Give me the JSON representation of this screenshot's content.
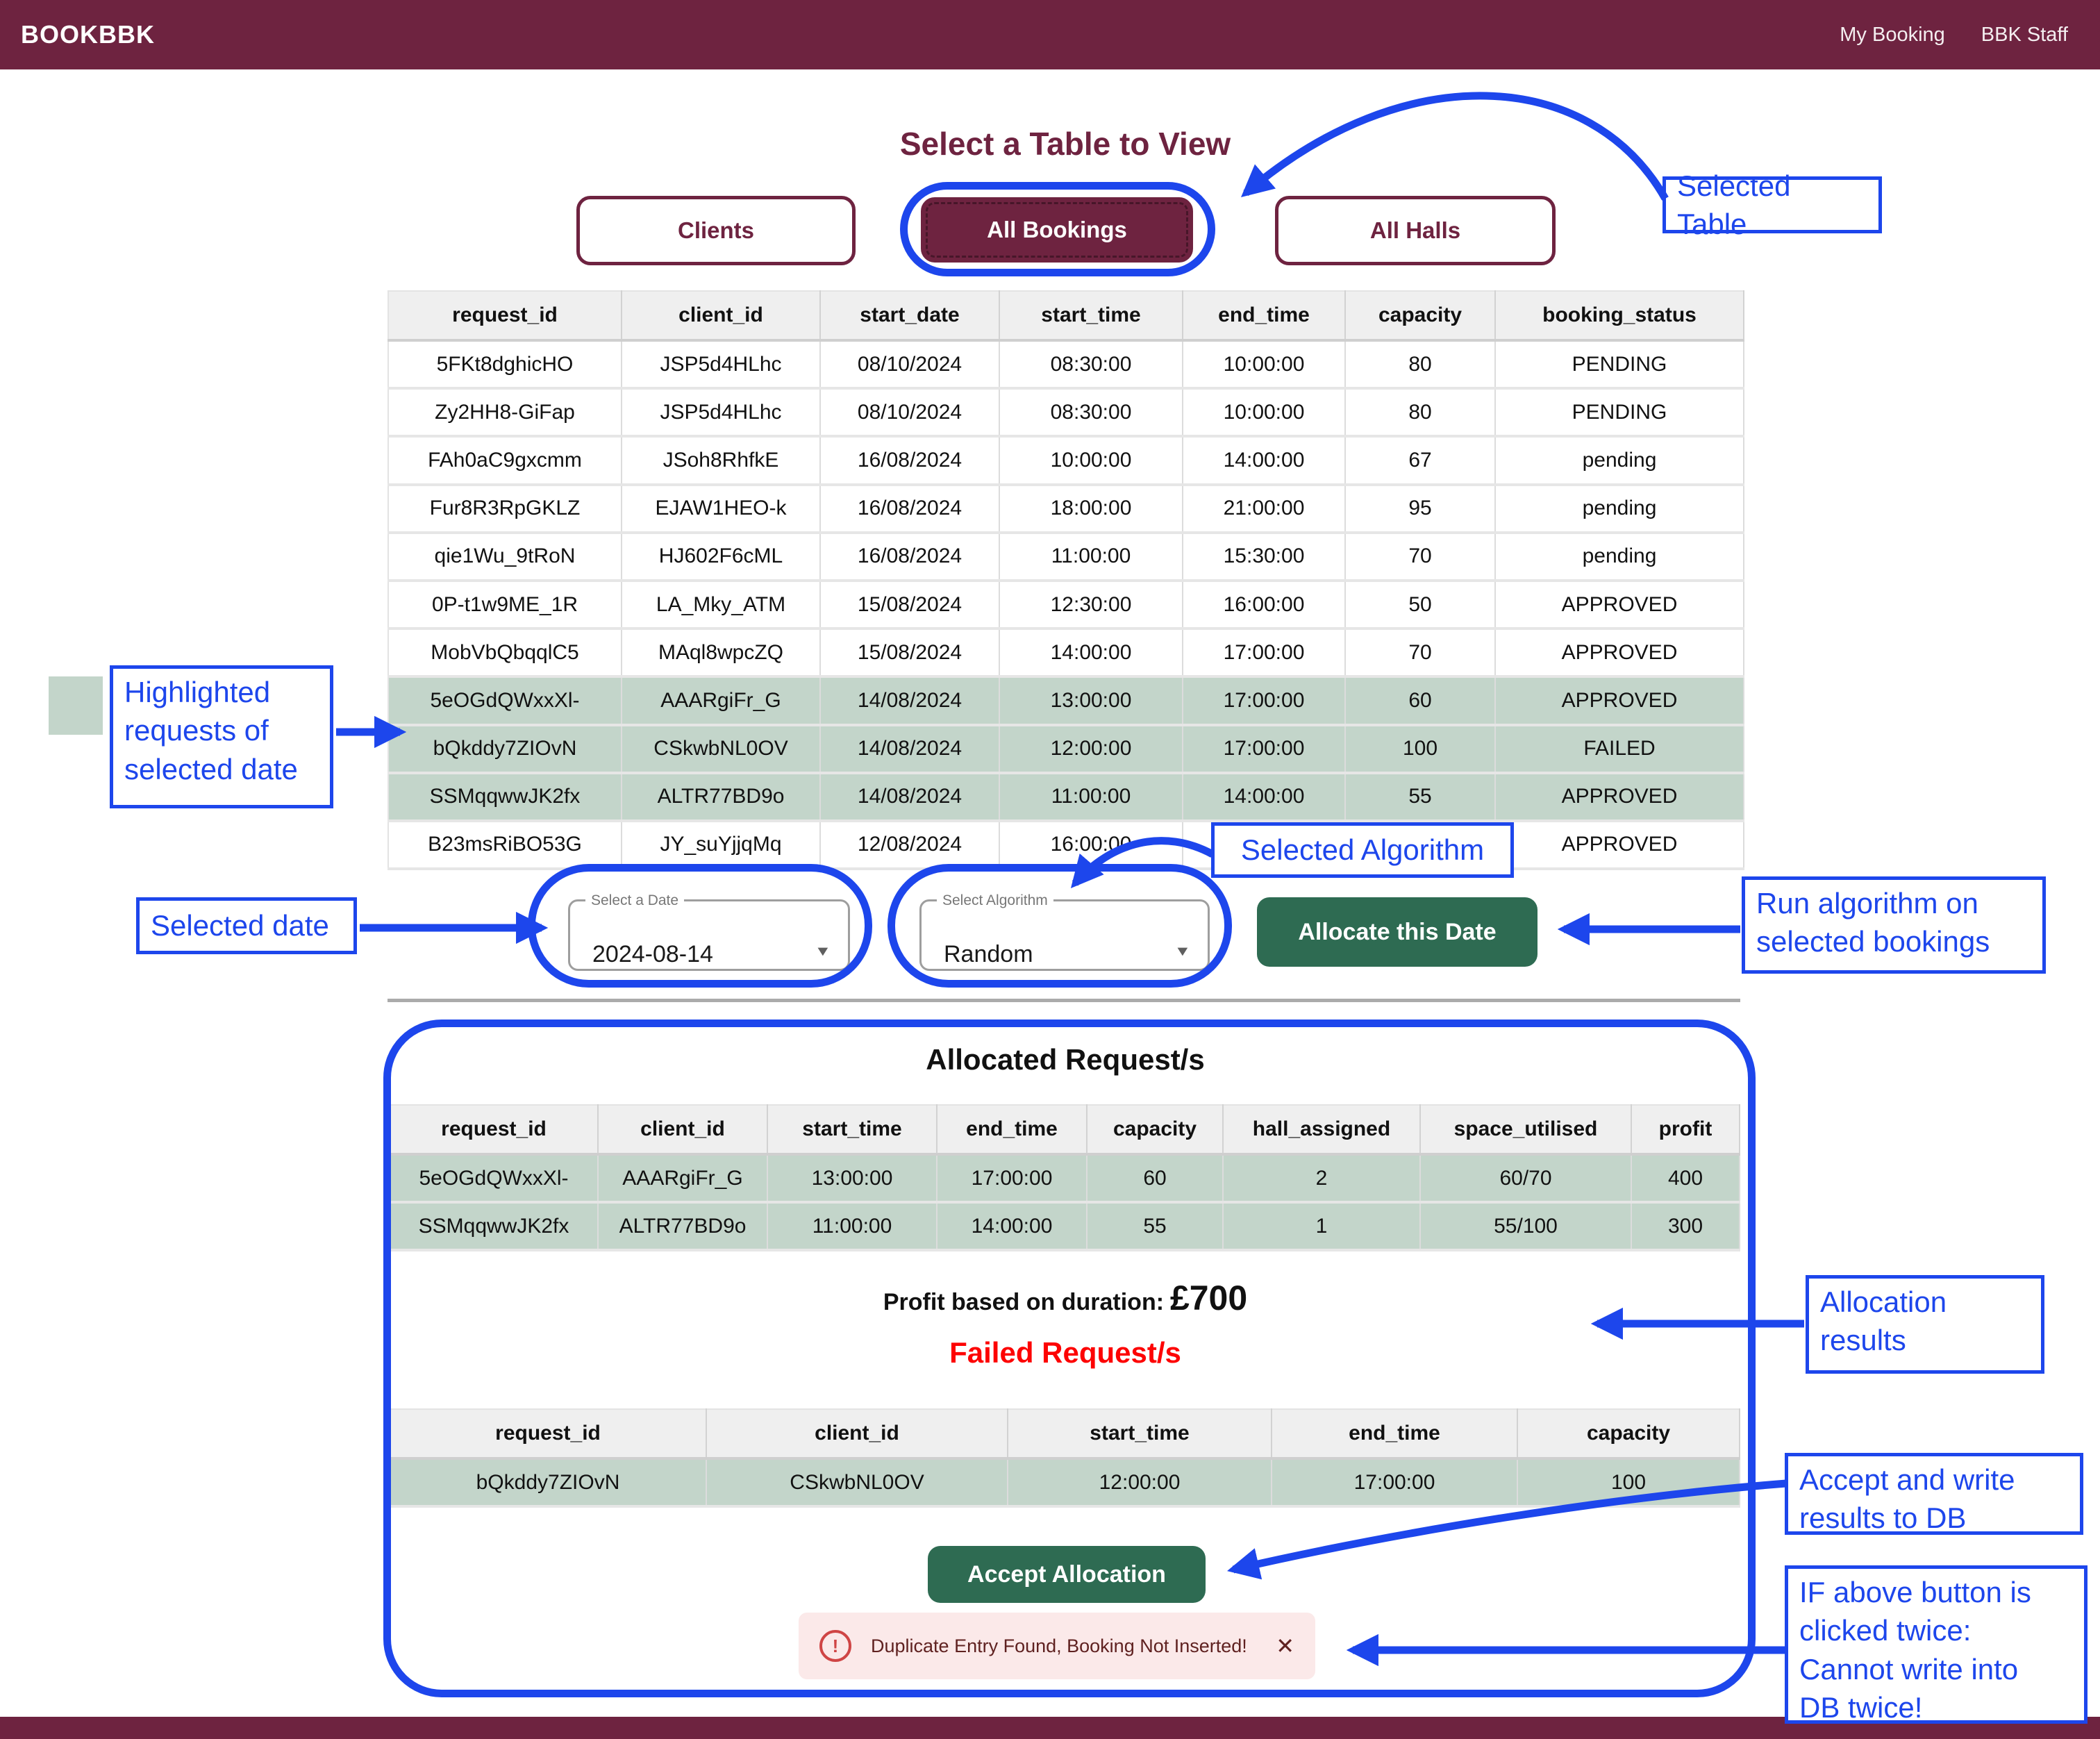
{
  "topbar": {
    "brand": "BOOKBBK",
    "links": [
      {
        "label": "My Booking"
      },
      {
        "label": "BBK Staff"
      }
    ]
  },
  "title": "Select a Table to View",
  "tabs": {
    "clients": "Clients",
    "all_bookings": "All Bookings",
    "all_halls": "All Halls"
  },
  "tables": {
    "bookings": {
      "headers": [
        "request_id",
        "client_id",
        "start_date",
        "start_time",
        "end_time",
        "capacity",
        "booking_status"
      ],
      "rows": [
        [
          "5FKt8dghicHO",
          "JSP5d4HLhc",
          "08/10/2024",
          "08:30:00",
          "10:00:00",
          "80",
          "PENDING"
        ],
        [
          "Zy2HH8-GiFap",
          "JSP5d4HLhc",
          "08/10/2024",
          "08:30:00",
          "10:00:00",
          "80",
          "PENDING"
        ],
        [
          "FAh0aC9gxcmm",
          "JSoh8RhfkE",
          "16/08/2024",
          "10:00:00",
          "14:00:00",
          "67",
          "pending"
        ],
        [
          "Fur8R3RpGKLZ",
          "EJAW1HEO-k",
          "16/08/2024",
          "18:00:00",
          "21:00:00",
          "95",
          "pending"
        ],
        [
          "qie1Wu_9tRoN",
          "HJ602F6cML",
          "16/08/2024",
          "11:00:00",
          "15:30:00",
          "70",
          "pending"
        ],
        [
          "0P-t1w9ME_1R",
          "LA_Mky_ATM",
          "15/08/2024",
          "12:30:00",
          "16:00:00",
          "50",
          "APPROVED"
        ],
        [
          "MobVbQbqqlC5",
          "MAql8wpcZQ",
          "15/08/2024",
          "14:00:00",
          "17:00:00",
          "70",
          "APPROVED"
        ],
        [
          "5eOGdQWxxXl-",
          "AAARgiFr_G",
          "14/08/2024",
          "13:00:00",
          "17:00:00",
          "60",
          "APPROVED"
        ],
        [
          "bQkddy7ZIOvN",
          "CSkwbNL0OV",
          "14/08/2024",
          "12:00:00",
          "17:00:00",
          "100",
          "FAILED"
        ],
        [
          "SSMqqwwJK2fx",
          "ALTR77BD9o",
          "14/08/2024",
          "11:00:00",
          "14:00:00",
          "55",
          "APPROVED"
        ],
        [
          "B23msRiBO53G",
          "JY_suYjjqMq",
          "12/08/2024",
          "16:00:00",
          "",
          "",
          "APPROVED"
        ]
      ],
      "highlight_rows": [
        7,
        8,
        9
      ]
    },
    "allocated": {
      "headers": [
        "request_id",
        "client_id",
        "start_time",
        "end_time",
        "capacity",
        "hall_assigned",
        "space_utilised",
        "profit"
      ],
      "rows": [
        [
          "5eOGdQWxxXl-",
          "AAARgiFr_G",
          "13:00:00",
          "17:00:00",
          "60",
          "2",
          "60/70",
          "400"
        ],
        [
          "SSMqqwwJK2fx",
          "ALTR77BD9o",
          "11:00:00",
          "14:00:00",
          "55",
          "1",
          "55/100",
          "300"
        ]
      ],
      "highlight_rows": [
        0,
        1
      ]
    },
    "failed": {
      "headers": [
        "request_id",
        "client_id",
        "start_time",
        "end_time",
        "capacity"
      ],
      "rows": [
        [
          "bQkddy7ZIOvN",
          "CSkwbNL0OV",
          "12:00:00",
          "17:00:00",
          "100"
        ]
      ],
      "highlight_rows": [
        0
      ]
    }
  },
  "controls": {
    "date_label": "Select a Date",
    "date_value": "2024-08-14",
    "algorithm_label": "Select Algorithm",
    "algorithm_value": "Random",
    "allocate_button": "Allocate this Date"
  },
  "allocation": {
    "title": "Allocated Request/s",
    "profit_label": "Profit based on duration:",
    "profit_value": "£700",
    "failed_title": "Failed Request/s",
    "accept_button": "Accept Allocation"
  },
  "toast": {
    "alert_icon": "!",
    "message": "Duplicate Entry Found, Booking Not Inserted!",
    "close_icon": "✕"
  },
  "icons": {
    "chevron_down": "▼"
  },
  "annotations": {
    "selected_table": "Selected Table",
    "highlighted": [
      "Highlighted",
      "requests of",
      "selected date"
    ],
    "selected_date": "Selected date",
    "selected_algorithm": "Selected Algorithm",
    "run_algorithm": [
      "Run algorithm on",
      "selected bookings"
    ],
    "allocation_results": [
      "Allocation",
      "results"
    ],
    "accept_write": [
      "Accept and write",
      "results to DB"
    ],
    "if_above": [
      "IF above button is",
      "clicked twice:",
      "Cannot write into",
      "DB twice!"
    ]
  },
  "colors": {
    "maroon": "#6e2340",
    "annotation_blue": "#1d46ec",
    "highlight_green": "#c3d5ca",
    "button_green": "#2e6b52",
    "failed_red": "#fd0303",
    "toast_bg": "#fbe9e9",
    "toast_text": "#5f2120"
  }
}
